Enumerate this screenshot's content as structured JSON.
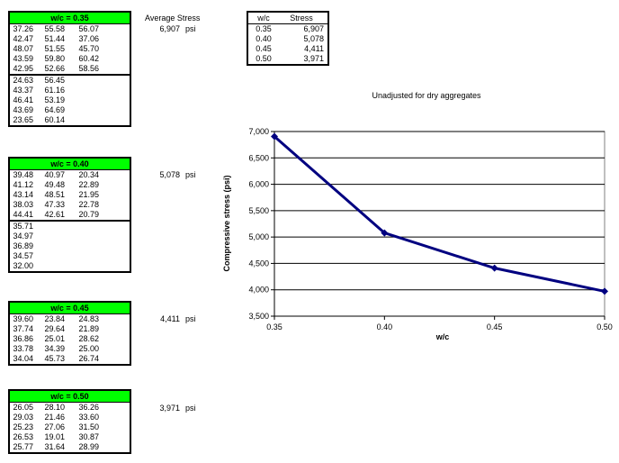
{
  "blocks": [
    {
      "header": "w/c  =  0.35",
      "avg_label": "Average Stress",
      "avg_value": "6,907",
      "unit": "psi",
      "sections": [
        [
          [
            "37.26",
            "55.58",
            "56.07"
          ],
          [
            "42.47",
            "51.44",
            "37.06"
          ],
          [
            "48.07",
            "51.55",
            "45.70"
          ],
          [
            "43.59",
            "59.80",
            "60.42"
          ],
          [
            "42.95",
            "52.66",
            "58.56"
          ]
        ],
        [
          [
            "24.63",
            "56.45",
            ""
          ],
          [
            "43.37",
            "61.16",
            ""
          ],
          [
            "46.41",
            "53.19",
            ""
          ],
          [
            "43.69",
            "64.69",
            ""
          ],
          [
            "23.65",
            "60.14",
            ""
          ]
        ]
      ]
    },
    {
      "header": "w/c  =  0.40",
      "avg_label": "",
      "avg_value": "5,078",
      "unit": "psi",
      "sections": [
        [
          [
            "39.48",
            "40.97",
            "20.34"
          ],
          [
            "41.12",
            "49.48",
            "22.89"
          ],
          [
            "43.14",
            "48.51",
            "21.95"
          ],
          [
            "38.03",
            "47.33",
            "22.78"
          ],
          [
            "44.41",
            "42.61",
            "20.79"
          ]
        ],
        [
          [
            "35.71",
            "",
            ""
          ],
          [
            "34.97",
            "",
            ""
          ],
          [
            "36.89",
            "",
            ""
          ],
          [
            "34.57",
            "",
            ""
          ],
          [
            "32.00",
            "",
            ""
          ]
        ]
      ]
    },
    {
      "header": "w/c  =  0.45",
      "avg_label": "",
      "avg_value": "4,411",
      "unit": "psi",
      "sections": [
        [
          [
            "39.60",
            "23.84",
            "24.83"
          ],
          [
            "37.74",
            "29.64",
            "21.89"
          ],
          [
            "36.86",
            "25.01",
            "28.62"
          ],
          [
            "33.78",
            "34.39",
            "25.00"
          ],
          [
            "34.04",
            "45.73",
            "26.74"
          ]
        ]
      ]
    },
    {
      "header": "w/c  =  0.50",
      "avg_label": "",
      "avg_value": "3,971",
      "unit": "psi",
      "sections": [
        [
          [
            "26.05",
            "28.10",
            "36.26"
          ],
          [
            "29.03",
            "21.46",
            "33.60"
          ],
          [
            "25.23",
            "27.06",
            "31.50"
          ],
          [
            "26.53",
            "19.01",
            "30.87"
          ],
          [
            "25.77",
            "31.64",
            "28.99"
          ]
        ]
      ]
    }
  ],
  "summary": {
    "headers": [
      "w/c",
      "Stress"
    ],
    "rows": [
      [
        "0.35",
        "6,907"
      ],
      [
        "0.40",
        "5,078"
      ],
      [
        "0.45",
        "4,411"
      ],
      [
        "0.50",
        "3,971"
      ]
    ]
  },
  "chart_data": {
    "type": "line",
    "title": "Unadjusted for dry aggregates",
    "xlabel": "w/c",
    "ylabel": "Compressive stress (psi)",
    "x": [
      0.35,
      0.4,
      0.45,
      0.5
    ],
    "y": [
      6907,
      5078,
      4411,
      3971
    ],
    "xlim": [
      0.35,
      0.5
    ],
    "ylim": [
      3500,
      7000
    ],
    "xticks": [
      "0.35",
      "0.40",
      "0.45",
      "0.50"
    ],
    "yticks": [
      "3,500",
      "4,000",
      "4,500",
      "5,000",
      "5,500",
      "6,000",
      "6,500",
      "7,000"
    ],
    "grid": true,
    "color": "#000080"
  }
}
